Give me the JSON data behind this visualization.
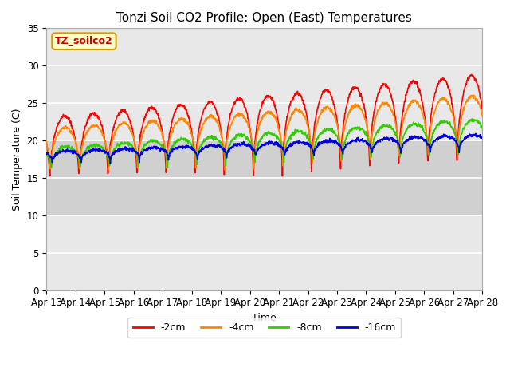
{
  "title": "Tonzi Soil CO2 Profile: Open (East) Temperatures",
  "xlabel": "Time",
  "ylabel": "Soil Temperature (C)",
  "ylim": [
    0,
    35
  ],
  "x_tick_labels": [
    "Apr 13",
    "Apr 14",
    "Apr 15",
    "Apr 16",
    "Apr 17",
    "Apr 18",
    "Apr 19",
    "Apr 20",
    "Apr 21",
    "Apr 22",
    "Apr 23",
    "Apr 24",
    "Apr 25",
    "Apr 26",
    "Apr 27",
    "Apr 28"
  ],
  "legend_labels": [
    "-2cm",
    "-4cm",
    "-8cm",
    "-16cm"
  ],
  "line_colors": [
    "#ff0000",
    "#ff8800",
    "#33cc00",
    "#0000dd"
  ],
  "line_width": 1.2,
  "background_color": "#ffffff",
  "plot_bg_color": "#e8e8e8",
  "band_color": "#d0d0d0",
  "band_low": 10,
  "band_high": 20,
  "legend_box_facecolor": "#ffffcc",
  "legend_box_edgecolor": "#cc9900",
  "legend_box_label": "TZ_soilco2",
  "legend_text_color": "#cc0000",
  "title_fontsize": 11,
  "axis_label_fontsize": 9,
  "tick_fontsize": 8.5
}
